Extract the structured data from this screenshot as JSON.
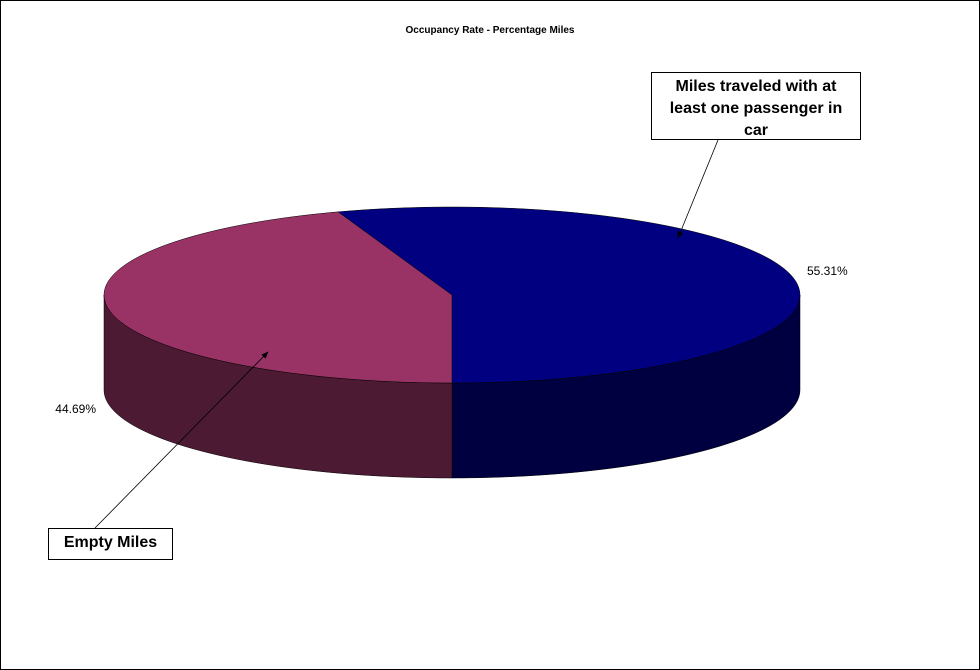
{
  "chart_data": {
    "type": "pie",
    "title": "Occupancy Rate - Percentage Miles",
    "categories": [
      "Miles traveled with at least one passenger in car",
      "Empty Miles"
    ],
    "values": [
      55.31,
      44.69
    ],
    "value_labels": [
      "55.31%",
      "44.69%"
    ],
    "colors": [
      "#000080",
      "#993366"
    ],
    "three_d": true
  }
}
